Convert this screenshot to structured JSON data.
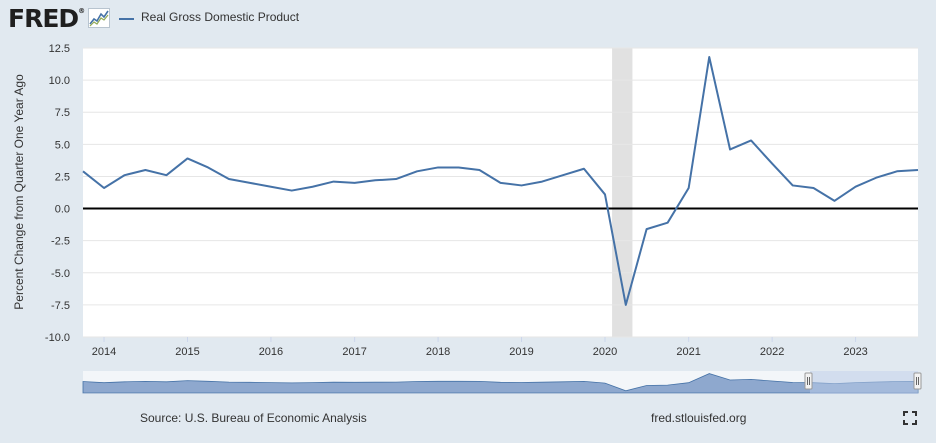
{
  "header": {
    "logo_text": "FRED",
    "registered_mark": "®",
    "legend_label": "Real Gross Domestic Product"
  },
  "footer": {
    "source": "Source: U.S. Bureau of Economic Analysis",
    "site": "fred.stlouisfed.org"
  },
  "colors": {
    "series": "#4572a7",
    "recession_band": "#e1e1e1",
    "page_background": "#e1e9f0",
    "navigator_fill": "#6c8ebf"
  },
  "icons": [
    "fred-graph-icon",
    "fullscreen-icon",
    "navigator-handle-icon"
  ],
  "chart_data": {
    "type": "line",
    "title": "",
    "ylabel": "Percent Change from Quarter One Year Ago",
    "xlabel": "",
    "ylim": [
      -10,
      12.5
    ],
    "yticks": [
      12.5,
      10.0,
      7.5,
      5.0,
      2.5,
      0.0,
      -2.5,
      -5.0,
      -7.5,
      -10.0
    ],
    "ytick_labels": [
      "12.5",
      "10.0",
      "7.5",
      "5.0",
      "2.5",
      "0.0",
      "-2.5",
      "-5.0",
      "-7.5",
      "-10.0"
    ],
    "xlim": [
      "2013-10-01",
      "2023-10-01"
    ],
    "xticks": [
      "2014",
      "2015",
      "2016",
      "2017",
      "2018",
      "2019",
      "2020",
      "2021",
      "2022",
      "2023"
    ],
    "grid": true,
    "recession_shading": [
      [
        "2020-02-01",
        "2020-04-30"
      ]
    ],
    "zero_line": true,
    "series": [
      {
        "name": "Real Gross Domestic Product",
        "x": [
          "2013-10-01",
          "2014-01-01",
          "2014-04-01",
          "2014-07-01",
          "2014-10-01",
          "2015-01-01",
          "2015-04-01",
          "2015-07-01",
          "2015-10-01",
          "2016-01-01",
          "2016-04-01",
          "2016-07-01",
          "2016-10-01",
          "2017-01-01",
          "2017-04-01",
          "2017-07-01",
          "2017-10-01",
          "2018-01-01",
          "2018-04-01",
          "2018-07-01",
          "2018-10-01",
          "2019-01-01",
          "2019-04-01",
          "2019-07-01",
          "2019-10-01",
          "2020-01-01",
          "2020-04-01",
          "2020-07-01",
          "2020-10-01",
          "2021-01-01",
          "2021-04-01",
          "2021-07-01",
          "2021-10-01",
          "2022-01-01",
          "2022-04-01",
          "2022-07-01",
          "2022-10-01",
          "2023-01-01",
          "2023-04-01",
          "2023-07-01",
          "2023-10-01"
        ],
        "values": [
          2.9,
          1.6,
          2.6,
          3.0,
          2.6,
          3.9,
          3.2,
          2.3,
          2.0,
          1.7,
          1.4,
          1.7,
          2.1,
          2.0,
          2.2,
          2.3,
          2.9,
          3.2,
          3.2,
          3.0,
          2.0,
          1.8,
          2.1,
          2.6,
          3.1,
          1.1,
          -7.5,
          -1.6,
          -1.1,
          1.6,
          11.8,
          4.6,
          5.3,
          3.5,
          1.8,
          1.6,
          0.6,
          1.7,
          2.4,
          2.9,
          3.0
        ]
      }
    ]
  }
}
